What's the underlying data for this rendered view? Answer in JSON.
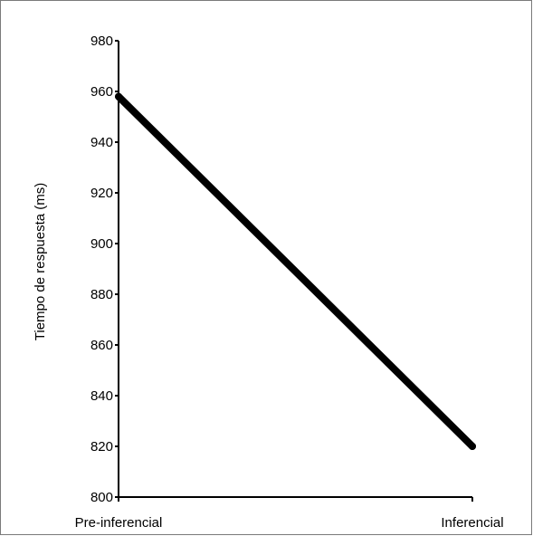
{
  "chart_data": {
    "type": "line",
    "categories": [
      "Pre-inferencial",
      "Inferencial"
    ],
    "series": [
      {
        "values": [
          958,
          820
        ],
        "color": "#000000"
      }
    ],
    "xlabel": "",
    "ylabel": "Tiempo de respuesta (ms)",
    "ylim": [
      800,
      980
    ],
    "yticks": [
      800,
      820,
      840,
      860,
      880,
      900,
      920,
      940,
      960,
      980
    ],
    "grid": false,
    "legend": "none"
  }
}
